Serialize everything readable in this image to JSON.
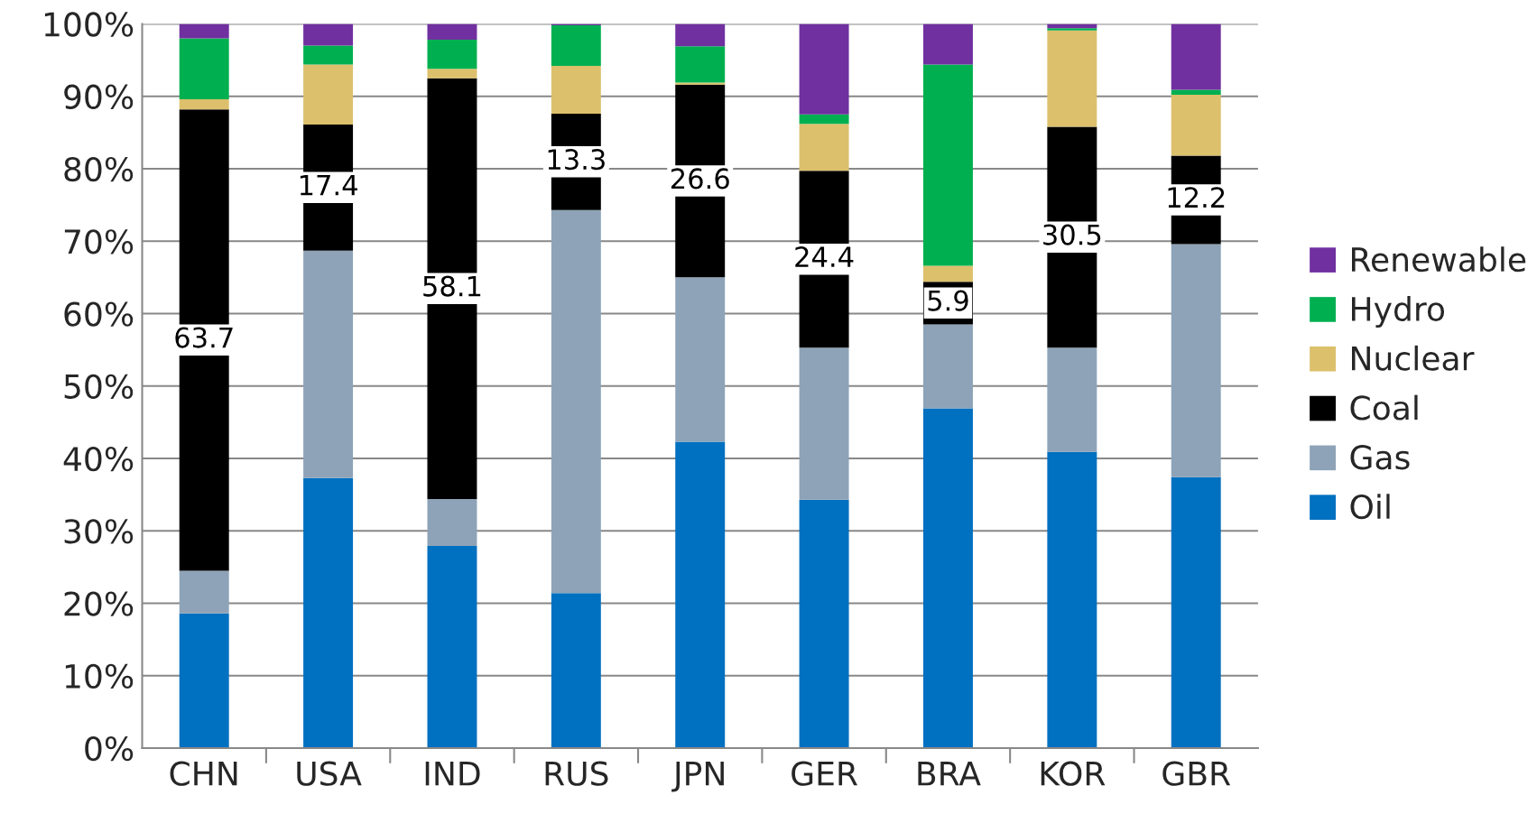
{
  "chart_data": {
    "type": "bar",
    "stacked": true,
    "categories": [
      "CHN",
      "USA",
      "IND",
      "RUS",
      "JPN",
      "GER",
      "BRA",
      "KOR",
      "GBR"
    ],
    "series": [
      {
        "name": "Oil",
        "color": "#0070c0",
        "values": [
          18.6,
          37.3,
          27.9,
          21.4,
          42.3,
          34.3,
          46.9,
          40.9,
          37.4
        ]
      },
      {
        "name": "Gas",
        "color": "#8ea3b7",
        "values": [
          5.9,
          31.4,
          6.5,
          52.9,
          22.7,
          21.0,
          11.6,
          14.4,
          32.2
        ]
      },
      {
        "name": "Coal",
        "color": "#000000",
        "values": [
          63.7,
          17.4,
          58.1,
          13.3,
          26.6,
          24.4,
          5.9,
          30.5,
          12.2
        ],
        "value_labels": [
          "63.7",
          "17.4",
          "58.1",
          "13.3",
          "26.6",
          "24.4",
          "5.9",
          "30.5",
          "12.2"
        ]
      },
      {
        "name": "Nuclear",
        "color": "#dcc06c",
        "values": [
          1.4,
          8.3,
          1.3,
          6.6,
          0.3,
          6.5,
          2.2,
          13.3,
          8.4
        ]
      },
      {
        "name": "Hydro",
        "color": "#00b050",
        "values": [
          8.4,
          2.6,
          4.0,
          5.6,
          5.0,
          1.3,
          27.8,
          0.3,
          0.7
        ]
      },
      {
        "name": "Renewable",
        "color": "#7030a0",
        "values": [
          2.0,
          3.0,
          2.2,
          0.2,
          3.1,
          12.5,
          5.6,
          0.6,
          9.1
        ]
      }
    ],
    "ylim": [
      0,
      100
    ],
    "yticks": [
      {
        "value": 0,
        "label": "0%"
      },
      {
        "value": 10,
        "label": "10%"
      },
      {
        "value": 20,
        "label": "20%"
      },
      {
        "value": 30,
        "label": "30%"
      },
      {
        "value": 40,
        "label": "40%"
      },
      {
        "value": 50,
        "label": "50%"
      },
      {
        "value": 60,
        "label": "60%"
      },
      {
        "value": 70,
        "label": "70%"
      },
      {
        "value": 80,
        "label": "80%"
      },
      {
        "value": 90,
        "label": "90%"
      },
      {
        "value": 100,
        "label": "100%"
      }
    ],
    "grid": "y",
    "legend": "right"
  }
}
